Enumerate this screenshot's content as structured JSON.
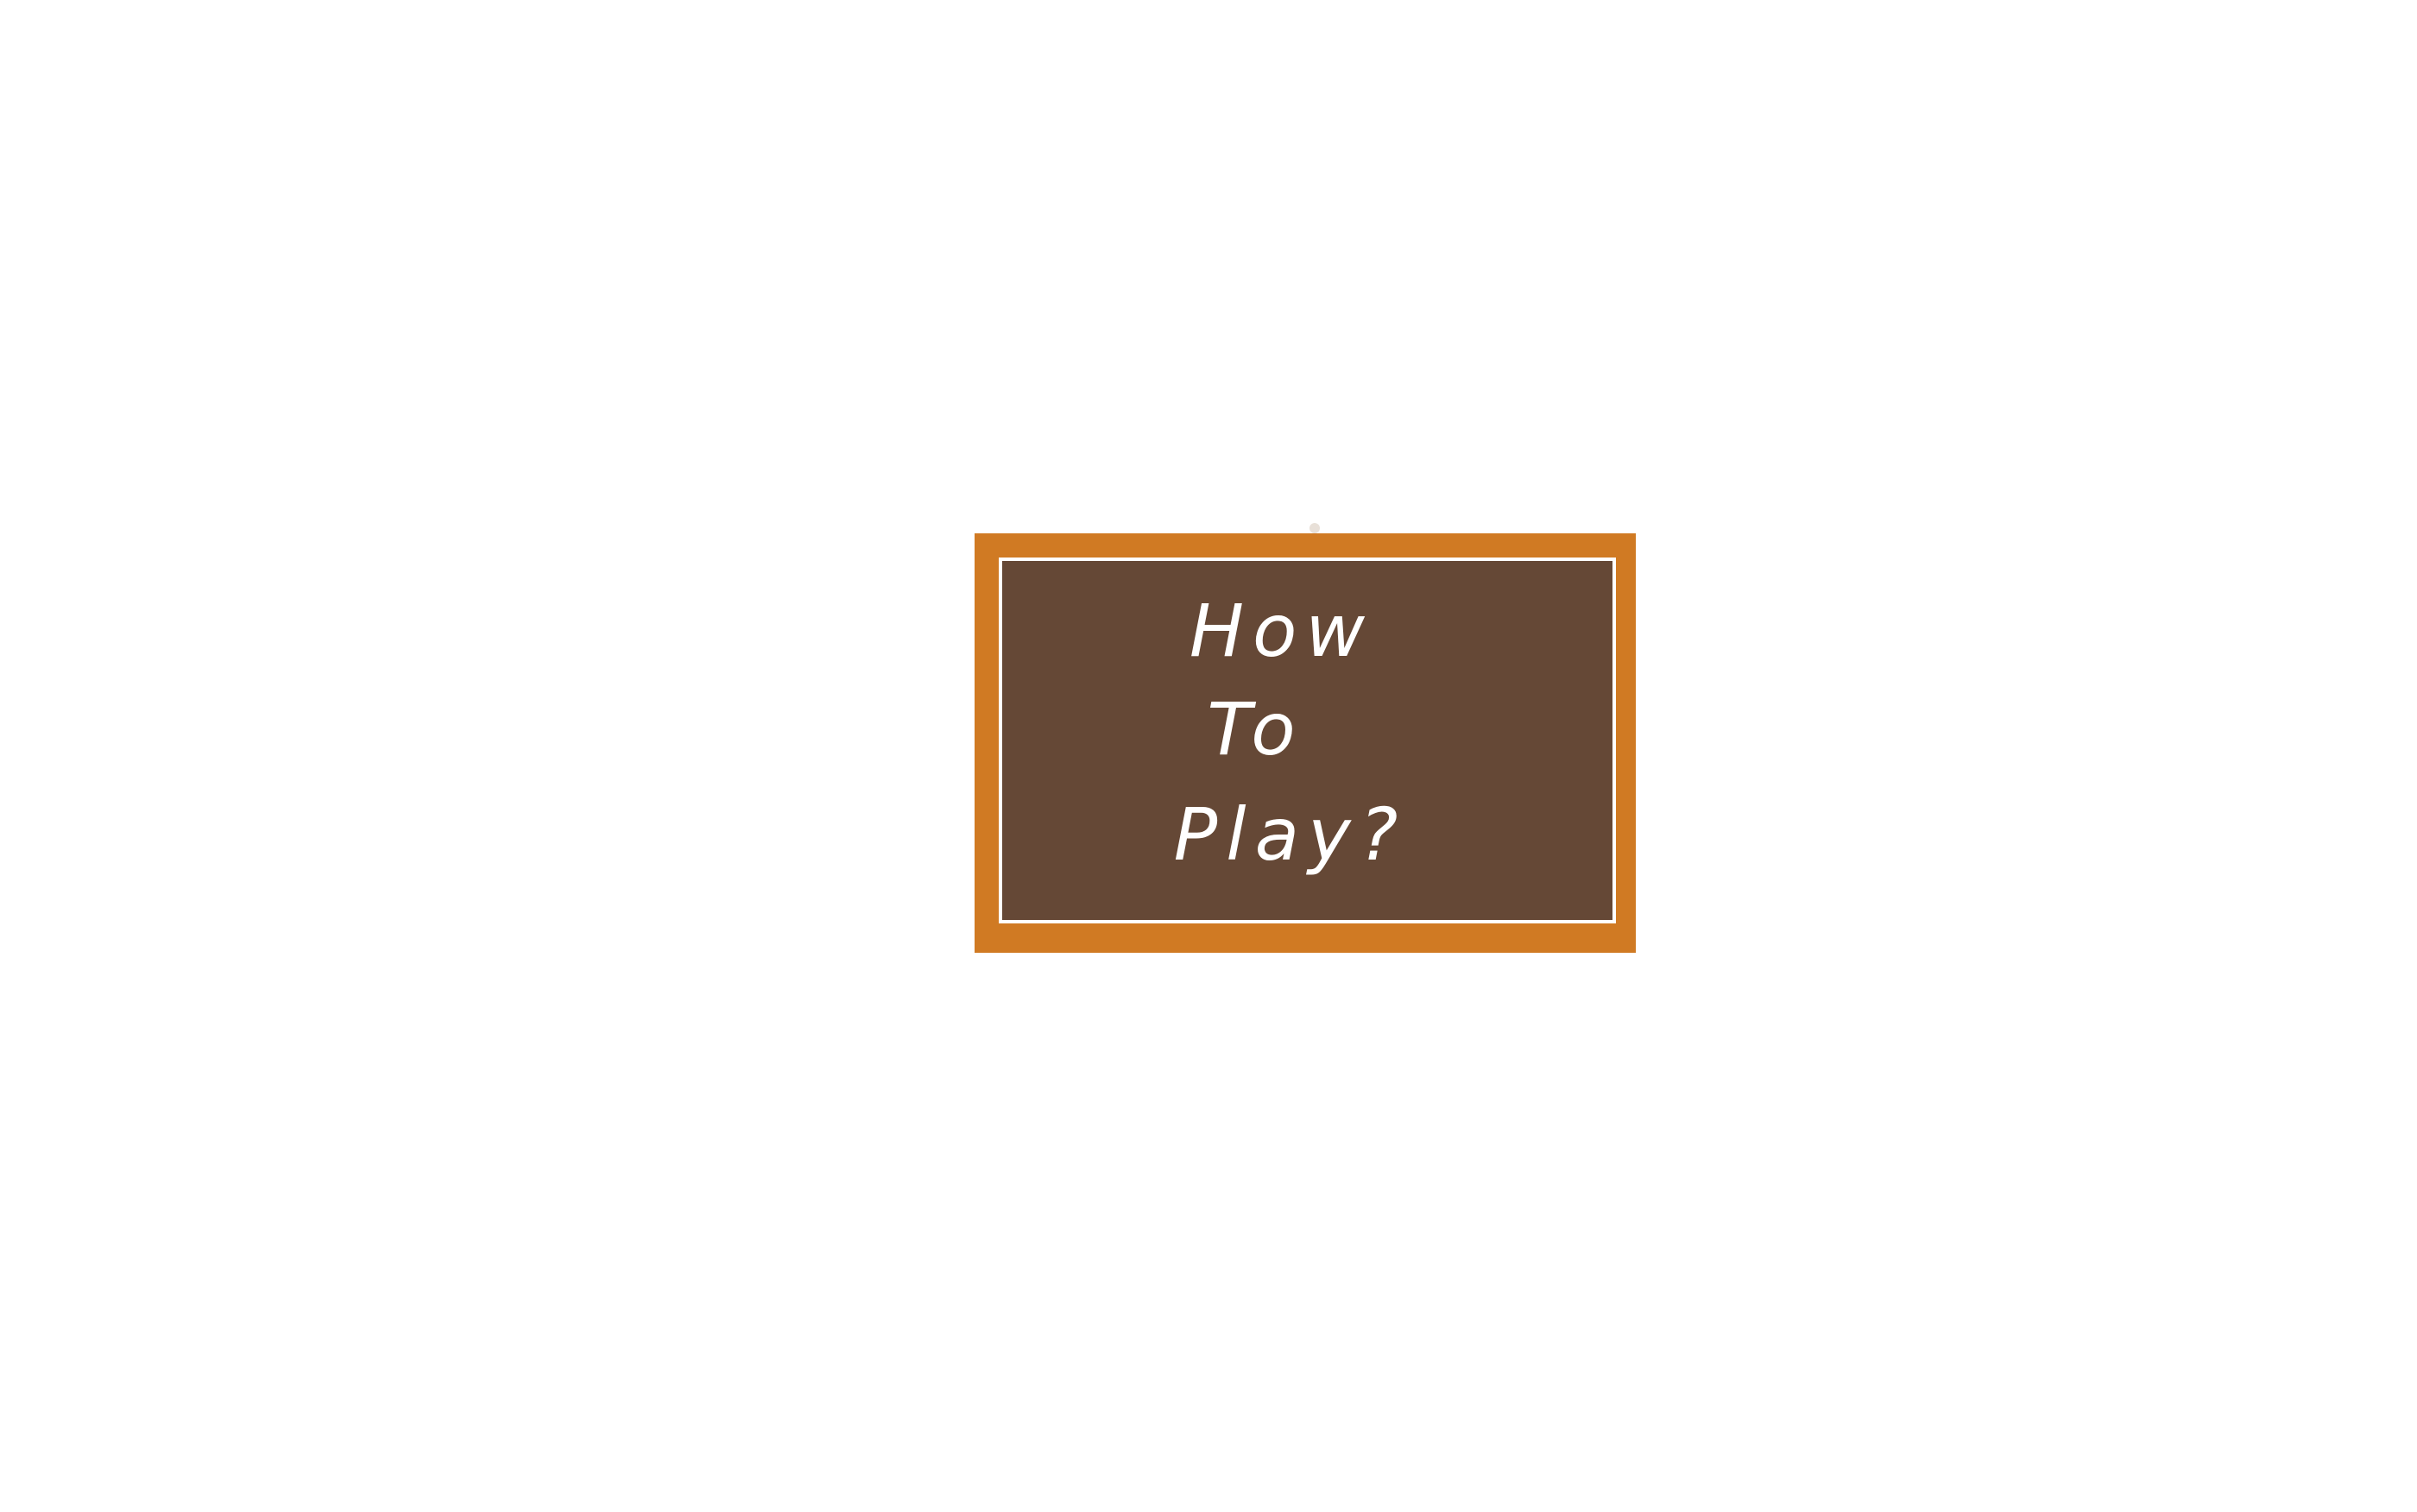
{
  "board": {
    "lines": [
      "How",
      "To",
      "Play?"
    ]
  }
}
